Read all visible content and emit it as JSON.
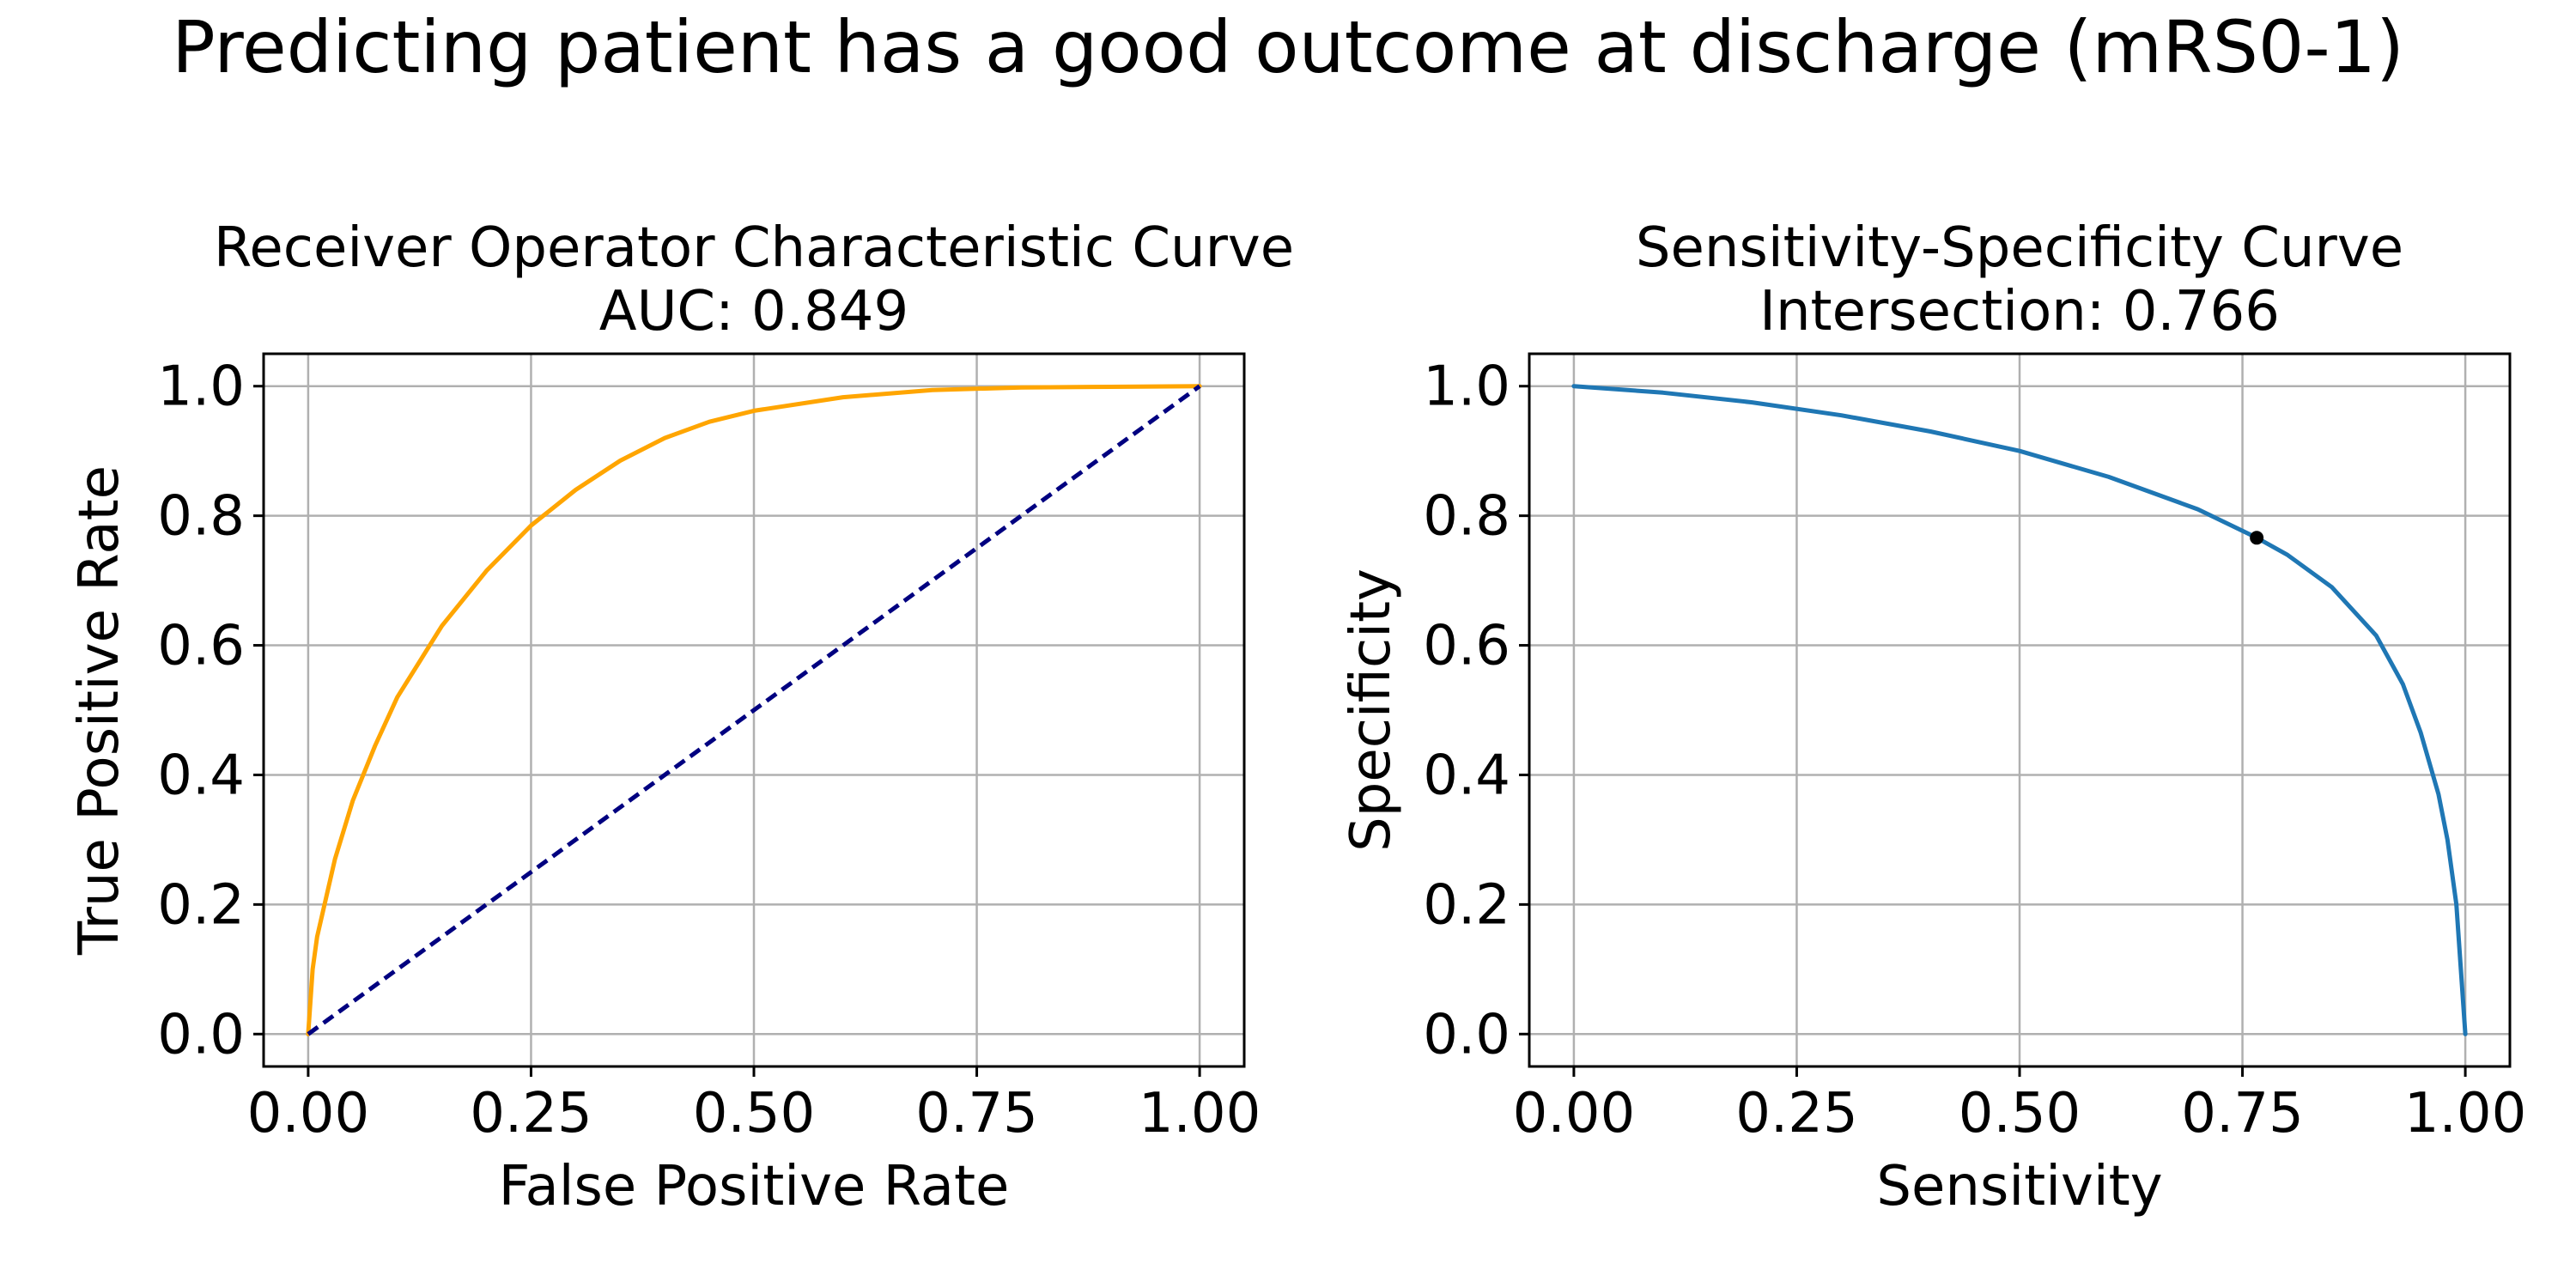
{
  "suptitle": "Predicting patient has a good outcome at discharge (mRS0-1)",
  "chart_data": [
    {
      "type": "line",
      "title": "Receiver Operator Characteristic Curve",
      "subtitle": "AUC: 0.849",
      "xlabel": "False Positive Rate",
      "ylabel": "True Positive Rate",
      "xlim": [
        -0.05,
        1.05
      ],
      "ylim": [
        -0.05,
        1.05
      ],
      "xticks": [
        "0.00",
        "0.25",
        "0.50",
        "0.75",
        "1.00"
      ],
      "yticks": [
        "0.0",
        "0.2",
        "0.4",
        "0.6",
        "0.8",
        "1.0"
      ],
      "grid": true,
      "series": [
        {
          "color": "#FFA500",
          "style": "solid",
          "x": [
            0.0,
            0.005,
            0.01,
            0.02,
            0.03,
            0.05,
            0.075,
            0.1,
            0.125,
            0.15,
            0.2,
            0.25,
            0.3,
            0.35,
            0.4,
            0.45,
            0.5,
            0.6,
            0.7,
            0.8,
            0.9,
            1.0
          ],
          "y": [
            0.0,
            0.1,
            0.15,
            0.21,
            0.27,
            0.36,
            0.445,
            0.52,
            0.575,
            0.63,
            0.715,
            0.785,
            0.84,
            0.885,
            0.92,
            0.945,
            0.962,
            0.983,
            0.994,
            0.998,
            0.999,
            1.0
          ]
        },
        {
          "color": "#000080",
          "style": "dashed",
          "x": [
            0.0,
            1.0
          ],
          "y": [
            0.0,
            1.0
          ]
        }
      ]
    },
    {
      "type": "line",
      "title": "Sensitivity-Specificity Curve",
      "subtitle": "Intersection: 0.766",
      "xlabel": "Sensitivity",
      "ylabel": "Specificity",
      "xlim": [
        -0.05,
        1.05
      ],
      "ylim": [
        -0.05,
        1.05
      ],
      "xticks": [
        "0.00",
        "0.25",
        "0.50",
        "0.75",
        "1.00"
      ],
      "yticks": [
        "0.0",
        "0.2",
        "0.4",
        "0.6",
        "0.8",
        "1.0"
      ],
      "grid": true,
      "series": [
        {
          "color": "#1F77B4",
          "style": "solid",
          "x": [
            0.0,
            0.1,
            0.2,
            0.3,
            0.4,
            0.5,
            0.6,
            0.7,
            0.766,
            0.8,
            0.85,
            0.9,
            0.93,
            0.95,
            0.97,
            0.98,
            0.99,
            0.995,
            1.0
          ],
          "y": [
            1.0,
            0.99,
            0.975,
            0.955,
            0.93,
            0.9,
            0.86,
            0.81,
            0.766,
            0.74,
            0.69,
            0.615,
            0.54,
            0.465,
            0.37,
            0.3,
            0.2,
            0.1,
            0.0
          ]
        }
      ],
      "marker": {
        "x": 0.766,
        "y": 0.766,
        "color": "#000000"
      }
    }
  ]
}
